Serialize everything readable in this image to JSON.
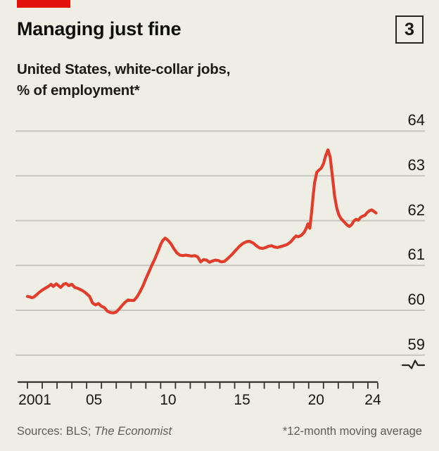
{
  "header": {
    "title": "Managing just fine",
    "badge": "3",
    "subtitle_line1": "United States, white-collar jobs,",
    "subtitle_line2": "% of employment*"
  },
  "footer": {
    "sources_prefix": "Sources: BLS; ",
    "sources_italic": "The Economist",
    "footnote": "*12-month moving average"
  },
  "colors": {
    "background": "#EFEEE5",
    "brand_red": "#E3120B",
    "line_red": "#E23D2C",
    "grid": "#C8C7BD",
    "axis": "#33322B",
    "text_dark": "#16160F",
    "text_muted": "#5E5D55"
  },
  "chart_data": {
    "type": "line",
    "title": "Managing just fine",
    "subtitle": "United States, white-collar jobs, % of employment (12-month moving average)",
    "series_name": "White-collar jobs, % of employment",
    "grid": "horizontal",
    "legend": "none",
    "axis_break_marker": true,
    "xlim": [
      2001,
      2024.7
    ],
    "ylim": [
      59,
      64
    ],
    "yticks": [
      64,
      63,
      62,
      61,
      60,
      59
    ],
    "xticks": [
      {
        "label": "2001",
        "year": 2001
      },
      {
        "label": "05",
        "year": 2005
      },
      {
        "label": "10",
        "year": 2010
      },
      {
        "label": "15",
        "year": 2015
      },
      {
        "label": "20",
        "year": 2020
      },
      {
        "label": "24",
        "year": 2024
      }
    ],
    "points": [
      [
        2001.0,
        60.31
      ],
      [
        2001.15,
        60.3
      ],
      [
        2001.3,
        60.28
      ],
      [
        2001.45,
        60.3
      ],
      [
        2001.6,
        60.34
      ],
      [
        2001.8,
        60.4
      ],
      [
        2002.0,
        60.45
      ],
      [
        2002.2,
        60.49
      ],
      [
        2002.4,
        60.53
      ],
      [
        2002.6,
        60.58
      ],
      [
        2002.75,
        60.53
      ],
      [
        2002.95,
        60.59
      ],
      [
        2003.1,
        60.55
      ],
      [
        2003.25,
        60.51
      ],
      [
        2003.45,
        60.58
      ],
      [
        2003.6,
        60.6
      ],
      [
        2003.8,
        60.55
      ],
      [
        2004.0,
        60.58
      ],
      [
        2004.2,
        60.51
      ],
      [
        2004.4,
        60.49
      ],
      [
        2004.6,
        60.46
      ],
      [
        2004.8,
        60.42
      ],
      [
        2005.0,
        60.37
      ],
      [
        2005.2,
        60.31
      ],
      [
        2005.4,
        60.16
      ],
      [
        2005.6,
        60.12
      ],
      [
        2005.8,
        60.15
      ],
      [
        2006.0,
        60.09
      ],
      [
        2006.2,
        60.06
      ],
      [
        2006.4,
        59.98
      ],
      [
        2006.6,
        59.95
      ],
      [
        2006.8,
        59.94
      ],
      [
        2007.0,
        59.96
      ],
      [
        2007.2,
        60.03
      ],
      [
        2007.4,
        60.11
      ],
      [
        2007.6,
        60.18
      ],
      [
        2007.8,
        60.23
      ],
      [
        2008.0,
        60.22
      ],
      [
        2008.2,
        60.22
      ],
      [
        2008.4,
        60.3
      ],
      [
        2008.6,
        60.41
      ],
      [
        2008.8,
        60.54
      ],
      [
        2009.0,
        60.7
      ],
      [
        2009.2,
        60.85
      ],
      [
        2009.4,
        61.0
      ],
      [
        2009.6,
        61.14
      ],
      [
        2009.8,
        61.3
      ],
      [
        2010.0,
        61.47
      ],
      [
        2010.15,
        61.56
      ],
      [
        2010.3,
        61.61
      ],
      [
        2010.5,
        61.56
      ],
      [
        2010.7,
        61.48
      ],
      [
        2010.9,
        61.37
      ],
      [
        2011.1,
        61.28
      ],
      [
        2011.3,
        61.23
      ],
      [
        2011.5,
        61.22
      ],
      [
        2011.7,
        61.23
      ],
      [
        2011.9,
        61.22
      ],
      [
        2012.1,
        61.21
      ],
      [
        2012.3,
        61.22
      ],
      [
        2012.5,
        61.19
      ],
      [
        2012.7,
        61.08
      ],
      [
        2012.9,
        61.13
      ],
      [
        2013.1,
        61.12
      ],
      [
        2013.3,
        61.07
      ],
      [
        2013.5,
        61.1
      ],
      [
        2013.7,
        61.12
      ],
      [
        2013.9,
        61.11
      ],
      [
        2014.1,
        61.08
      ],
      [
        2014.3,
        61.09
      ],
      [
        2014.55,
        61.16
      ],
      [
        2014.8,
        61.24
      ],
      [
        2015.05,
        61.33
      ],
      [
        2015.3,
        61.42
      ],
      [
        2015.55,
        61.49
      ],
      [
        2015.8,
        61.53
      ],
      [
        2016.0,
        61.54
      ],
      [
        2016.25,
        61.5
      ],
      [
        2016.5,
        61.43
      ],
      [
        2016.7,
        61.39
      ],
      [
        2016.9,
        61.38
      ],
      [
        2017.1,
        61.4
      ],
      [
        2017.3,
        61.43
      ],
      [
        2017.5,
        61.44
      ],
      [
        2017.7,
        61.41
      ],
      [
        2017.9,
        61.4
      ],
      [
        2018.1,
        61.42
      ],
      [
        2018.3,
        61.44
      ],
      [
        2018.55,
        61.47
      ],
      [
        2018.8,
        61.53
      ],
      [
        2019.0,
        61.61
      ],
      [
        2019.15,
        61.66
      ],
      [
        2019.3,
        61.64
      ],
      [
        2019.5,
        61.67
      ],
      [
        2019.7,
        61.74
      ],
      [
        2019.85,
        61.84
      ],
      [
        2019.95,
        61.93
      ],
      [
        2020.08,
        61.83
      ],
      [
        2020.2,
        62.2
      ],
      [
        2020.3,
        62.55
      ],
      [
        2020.4,
        62.85
      ],
      [
        2020.55,
        63.08
      ],
      [
        2020.7,
        63.13
      ],
      [
        2020.85,
        63.17
      ],
      [
        2021.0,
        63.27
      ],
      [
        2021.15,
        63.45
      ],
      [
        2021.3,
        63.58
      ],
      [
        2021.45,
        63.42
      ],
      [
        2021.6,
        63.0
      ],
      [
        2021.75,
        62.55
      ],
      [
        2021.9,
        62.28
      ],
      [
        2022.05,
        62.12
      ],
      [
        2022.2,
        62.04
      ],
      [
        2022.4,
        61.97
      ],
      [
        2022.6,
        61.9
      ],
      [
        2022.75,
        61.87
      ],
      [
        2022.9,
        61.91
      ],
      [
        2023.05,
        61.99
      ],
      [
        2023.2,
        62.03
      ],
      [
        2023.35,
        62.01
      ],
      [
        2023.5,
        62.07
      ],
      [
        2023.65,
        62.1
      ],
      [
        2023.8,
        62.12
      ],
      [
        2023.95,
        62.18
      ],
      [
        2024.1,
        62.22
      ],
      [
        2024.25,
        62.24
      ],
      [
        2024.4,
        62.21
      ],
      [
        2024.55,
        62.17
      ]
    ]
  }
}
